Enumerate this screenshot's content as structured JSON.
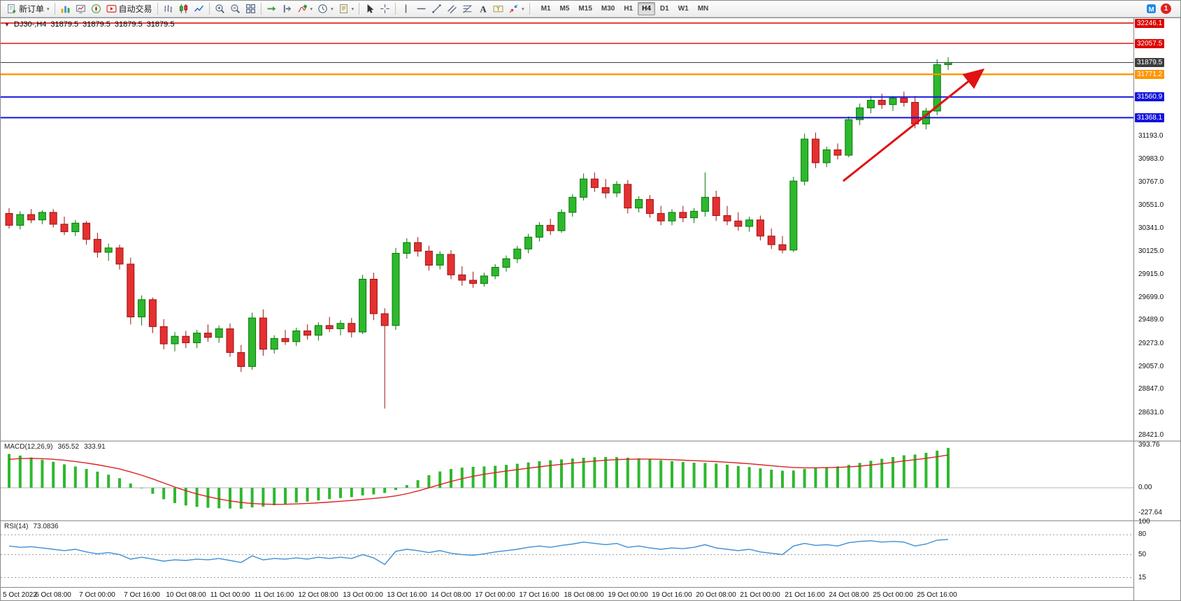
{
  "toolbar": {
    "new_order_label": "新订单",
    "auto_trading_label": "自动交易",
    "timeframes": [
      "M1",
      "M5",
      "M15",
      "M30",
      "H1",
      "H4",
      "D1",
      "W1",
      "MN"
    ],
    "active_timeframe": "H4",
    "notification_count": "1",
    "left": [
      {
        "t": "btn",
        "name": "new-order-button",
        "icon": "new-order-icon",
        "label": "新订单",
        "dd": true
      },
      {
        "t": "sep"
      },
      {
        "t": "ico",
        "name": "charts-button",
        "icon": "charts-icon"
      },
      {
        "t": "ico",
        "name": "market-watch-button",
        "icon": "market-watch-icon"
      },
      {
        "t": "ico",
        "name": "navigator-button",
        "icon": "navigator-icon"
      },
      {
        "t": "btn",
        "name": "auto-trading-button",
        "icon": "auto-trading-icon",
        "label": "自动交易"
      },
      {
        "t": "sep"
      },
      {
        "t": "ico",
        "name": "bar-chart-button",
        "icon": "bar-chart-icon"
      },
      {
        "t": "ico",
        "name": "candlestick-chart-button",
        "icon": "candlestick-icon"
      },
      {
        "t": "ico",
        "name": "line-chart-button",
        "icon": "line-chart-icon"
      },
      {
        "t": "sep"
      },
      {
        "t": "ico",
        "name": "zoom-in-button",
        "icon": "zoom-in-icon"
      },
      {
        "t": "ico",
        "name": "zoom-out-button",
        "icon": "zoom-out-icon"
      },
      {
        "t": "ico",
        "name": "tile-windows-button",
        "icon": "tile-windows-icon"
      },
      {
        "t": "sep"
      },
      {
        "t": "ico",
        "name": "auto-scroll-button",
        "icon": "auto-scroll-icon"
      },
      {
        "t": "ico",
        "name": "chart-shift-button",
        "icon": "chart-shift-icon"
      },
      {
        "t": "ico",
        "name": "indicators-button",
        "icon": "indicators-icon",
        "dd": true
      },
      {
        "t": "ico",
        "name": "periods-button",
        "icon": "periods-icon",
        "dd": true
      },
      {
        "t": "ico",
        "name": "templates-button",
        "icon": "templates-icon",
        "dd": true
      },
      {
        "t": "sep"
      },
      {
        "t": "ico",
        "name": "cursor-button",
        "icon": "cursor-icon"
      },
      {
        "t": "ico",
        "name": "crosshair-button",
        "icon": "crosshair-icon"
      },
      {
        "t": "sep"
      },
      {
        "t": "ico",
        "name": "vertical-line-button",
        "icon": "vertical-line-icon"
      },
      {
        "t": "ico",
        "name": "horizontal-line-button",
        "icon": "horizontal-line-icon"
      },
      {
        "t": "ico",
        "name": "trendline-button",
        "icon": "trendline-icon"
      },
      {
        "t": "ico",
        "name": "channel-button",
        "icon": "channel-icon"
      },
      {
        "t": "ico",
        "name": "fibonacci-button",
        "icon": "fibonacci-icon"
      },
      {
        "t": "ico",
        "name": "text-button",
        "icon": "text-icon"
      },
      {
        "t": "ico",
        "name": "text-label-button",
        "icon": "text-label-icon"
      },
      {
        "t": "ico",
        "name": "arrows-button",
        "icon": "arrows-icon",
        "dd": true
      },
      {
        "t": "sep"
      }
    ]
  },
  "chart": {
    "header": {
      "symbol_period": "DJ30-,H4",
      "open": "31879.5",
      "high": "31879.5",
      "low": "31879.5",
      "close": "31879.5"
    }
  },
  "macd": {
    "name": "MACD(12,26,9)",
    "value_main": "365.52",
    "value_signal": "333.91"
  },
  "rsi": {
    "name": "RSI(14)",
    "value": "73.0836"
  },
  "chart_data": [
    {
      "type": "candlestick",
      "symbol": "DJ30-",
      "timeframe": "H4",
      "ohlc_header": [
        31879.5,
        31879.5,
        31879.5,
        31879.5
      ],
      "x_axis_labels": [
        "5 Oct 2022",
        "6 Oct 08:00",
        "7 Oct 00:00",
        "7 Oct 16:00",
        "10 Oct 08:00",
        "11 Oct 00:00",
        "11 Oct 16:00",
        "12 Oct 08:00",
        "13 Oct 00:00",
        "13 Oct 16:00",
        "14 Oct 08:00",
        "17 Oct 00:00",
        "17 Oct 16:00",
        "18 Oct 08:00",
        "19 Oct 00:00",
        "19 Oct 16:00",
        "20 Oct 08:00",
        "21 Oct 00:00",
        "21 Oct 16:00",
        "24 Oct 08:00",
        "25 Oct 00:00",
        "25 Oct 16:00"
      ],
      "candles_per_label": 4,
      "price_axis": {
        "top": 32246.1,
        "bottom": 28421.0,
        "grid_labels": [
          "31193.0",
          "30983.0",
          "30767.0",
          "30551.0",
          "30341.0",
          "30125.0",
          "29915.0",
          "29699.0",
          "29489.0",
          "29273.0",
          "29057.0",
          "28847.0",
          "28631.0",
          "28421.0"
        ]
      },
      "horizontal_lines": [
        {
          "price": 32246.1,
          "label": "32246.1",
          "color": "#dd0000",
          "width": 1.4
        },
        {
          "price": 32057.5,
          "label": "32057.5",
          "color": "#dd0000",
          "width": 1.4
        },
        {
          "price": 31879.5,
          "label": "31879.5",
          "color": "#3c3c3c",
          "width": 1,
          "style": "current-price"
        },
        {
          "price": 31771.2,
          "label": "31771.2",
          "color": "#ff9500",
          "width": 2.4
        },
        {
          "price": 31560.9,
          "label": "31560.9",
          "color": "#1414dd",
          "width": 2
        },
        {
          "price": 31368.1,
          "label": "31368.1",
          "color": "#1414dd",
          "width": 2
        }
      ],
      "annotation_arrow": {
        "from_index": 75.5,
        "from_price": 30780,
        "to_index": 88,
        "to_price": 31800,
        "color": "#e01212"
      },
      "up_color": "#2eb82e",
      "up_stroke": "#067806",
      "down_color": "#e53030",
      "down_stroke": "#9c1313",
      "candles": [
        [
          30480,
          30530,
          30340,
          30370
        ],
        [
          30370,
          30500,
          30330,
          30470
        ],
        [
          30470,
          30520,
          30390,
          30420
        ],
        [
          30420,
          30510,
          30380,
          30490
        ],
        [
          30490,
          30520,
          30350,
          30380
        ],
        [
          30380,
          30450,
          30280,
          30310
        ],
        [
          30310,
          30420,
          30270,
          30390
        ],
        [
          30390,
          30410,
          30190,
          30240
        ],
        [
          30240,
          30300,
          30070,
          30120
        ],
        [
          30120,
          30200,
          30040,
          30160
        ],
        [
          30160,
          30190,
          29960,
          30010
        ],
        [
          30010,
          30070,
          29450,
          29520
        ],
        [
          29520,
          29720,
          29440,
          29680
        ],
        [
          29680,
          29700,
          29370,
          29430
        ],
        [
          29430,
          29500,
          29220,
          29270
        ],
        [
          29270,
          29380,
          29200,
          29340
        ],
        [
          29340,
          29390,
          29230,
          29280
        ],
        [
          29280,
          29400,
          29230,
          29370
        ],
        [
          29370,
          29450,
          29290,
          29330
        ],
        [
          29330,
          29440,
          29280,
          29410
        ],
        [
          29410,
          29460,
          29150,
          29190
        ],
        [
          29190,
          29260,
          29010,
          29060
        ],
        [
          29060,
          29560,
          29030,
          29510
        ],
        [
          29510,
          29590,
          29160,
          29220
        ],
        [
          29220,
          29350,
          29180,
          29320
        ],
        [
          29320,
          29400,
          29260,
          29290
        ],
        [
          29290,
          29420,
          29250,
          29390
        ],
        [
          29390,
          29450,
          29310,
          29350
        ],
        [
          29350,
          29470,
          29300,
          29440
        ],
        [
          29440,
          29520,
          29380,
          29410
        ],
        [
          29410,
          29490,
          29350,
          29460
        ],
        [
          29460,
          29510,
          29330,
          29380
        ],
        [
          29380,
          29910,
          29360,
          29870
        ],
        [
          29870,
          29930,
          29490,
          29550
        ],
        [
          29550,
          29600,
          28670,
          29440
        ],
        [
          29440,
          30160,
          29400,
          30110
        ],
        [
          30110,
          30250,
          30060,
          30210
        ],
        [
          30210,
          30260,
          30080,
          30130
        ],
        [
          30130,
          30180,
          29950,
          30000
        ],
        [
          30000,
          30130,
          29960,
          30100
        ],
        [
          30100,
          30140,
          29870,
          29910
        ],
        [
          29910,
          29990,
          29810,
          29860
        ],
        [
          29860,
          29940,
          29790,
          29830
        ],
        [
          29830,
          29930,
          29800,
          29900
        ],
        [
          29900,
          30010,
          29870,
          29980
        ],
        [
          29980,
          30090,
          29940,
          30060
        ],
        [
          30060,
          30180,
          30020,
          30150
        ],
        [
          30150,
          30290,
          30110,
          30260
        ],
        [
          30260,
          30400,
          30220,
          30370
        ],
        [
          30370,
          30430,
          30280,
          30320
        ],
        [
          30320,
          30520,
          30300,
          30490
        ],
        [
          30490,
          30660,
          30450,
          30630
        ],
        [
          30630,
          30850,
          30600,
          30800
        ],
        [
          30800,
          30860,
          30680,
          30720
        ],
        [
          30720,
          30800,
          30620,
          30670
        ],
        [
          30670,
          30780,
          30630,
          30750
        ],
        [
          30750,
          30790,
          30480,
          30530
        ],
        [
          30530,
          30640,
          30490,
          30610
        ],
        [
          30610,
          30650,
          30440,
          30480
        ],
        [
          30480,
          30550,
          30370,
          30410
        ],
        [
          30410,
          30520,
          30370,
          30490
        ],
        [
          30490,
          30550,
          30400,
          30440
        ],
        [
          30440,
          30530,
          30390,
          30500
        ],
        [
          30500,
          30860,
          30450,
          30630
        ],
        [
          30630,
          30690,
          30410,
          30460
        ],
        [
          30460,
          30550,
          30370,
          30410
        ],
        [
          30410,
          30490,
          30320,
          30360
        ],
        [
          30360,
          30450,
          30310,
          30420
        ],
        [
          30420,
          30460,
          30230,
          30270
        ],
        [
          30270,
          30340,
          30150,
          30190
        ],
        [
          30190,
          30270,
          30110,
          30140
        ],
        [
          30140,
          30820,
          30120,
          30780
        ],
        [
          30780,
          31220,
          30740,
          31170
        ],
        [
          31170,
          31230,
          30900,
          30950
        ],
        [
          30950,
          31100,
          30910,
          31070
        ],
        [
          31070,
          31130,
          30980,
          31020
        ],
        [
          31020,
          31380,
          31000,
          31350
        ],
        [
          31350,
          31500,
          31300,
          31460
        ],
        [
          31460,
          31570,
          31410,
          31530
        ],
        [
          31530,
          31590,
          31450,
          31490
        ],
        [
          31490,
          31570,
          31430,
          31550
        ],
        [
          31550,
          31610,
          31470,
          31510
        ],
        [
          31510,
          31570,
          31270,
          31310
        ],
        [
          31310,
          31460,
          31260,
          31430
        ],
        [
          31430,
          31910,
          31390,
          31860
        ],
        [
          31860,
          31930,
          31810,
          31879.5
        ]
      ]
    },
    {
      "type": "bar",
      "name": "MACD(12,26,9)",
      "display_values": [
        365.52,
        333.91
      ],
      "scale_labels": [
        "393.76",
        "0.00",
        "-227.64"
      ],
      "max": 393.76,
      "min": -227.64,
      "bar_color": "#2eb82e",
      "signal_color": "#dd2222",
      "values": [
        310,
        295,
        278,
        258,
        238,
        215,
        195,
        172,
        148,
        120,
        88,
        40,
        -5,
        -55,
        -105,
        -140,
        -162,
        -175,
        -183,
        -188,
        -190,
        -192,
        -180,
        -172,
        -160,
        -148,
        -136,
        -126,
        -115,
        -104,
        -94,
        -86,
        -70,
        -60,
        -48,
        -20,
        25,
        70,
        115,
        150,
        172,
        185,
        192,
        196,
        202,
        210,
        220,
        232,
        243,
        252,
        260,
        268,
        275,
        280,
        282,
        281,
        276,
        270,
        262,
        252,
        243,
        236,
        230,
        228,
        222,
        212,
        200,
        190,
        178,
        166,
        156,
        158,
        172,
        182,
        190,
        196,
        210,
        228,
        248,
        266,
        282,
        298,
        305,
        320,
        340,
        365.52
      ]
    },
    {
      "type": "line",
      "name": "RSI(14)",
      "current": 73.0836,
      "levels": [
        80,
        50,
        15
      ],
      "scale_labels": [
        "100",
        "80",
        "50",
        "15"
      ],
      "range": [
        0,
        100
      ],
      "line_color": "#3e8fd4",
      "values": [
        63,
        61,
        62,
        60,
        58,
        56,
        58,
        54,
        51,
        53,
        50,
        43,
        46,
        43,
        40,
        42,
        41,
        43,
        42,
        44,
        41,
        38,
        48,
        42,
        44,
        43,
        45,
        43,
        46,
        44,
        46,
        44,
        50,
        45,
        35,
        55,
        58,
        56,
        53,
        56,
        52,
        50,
        49,
        51,
        54,
        56,
        58,
        61,
        63,
        61,
        64,
        66,
        69,
        67,
        65,
        67,
        61,
        63,
        60,
        58,
        60,
        59,
        61,
        65,
        60,
        58,
        56,
        58,
        54,
        52,
        50,
        63,
        67,
        64,
        65,
        63,
        68,
        70,
        71,
        69,
        70,
        69,
        63,
        66,
        72,
        73
      ]
    }
  ]
}
